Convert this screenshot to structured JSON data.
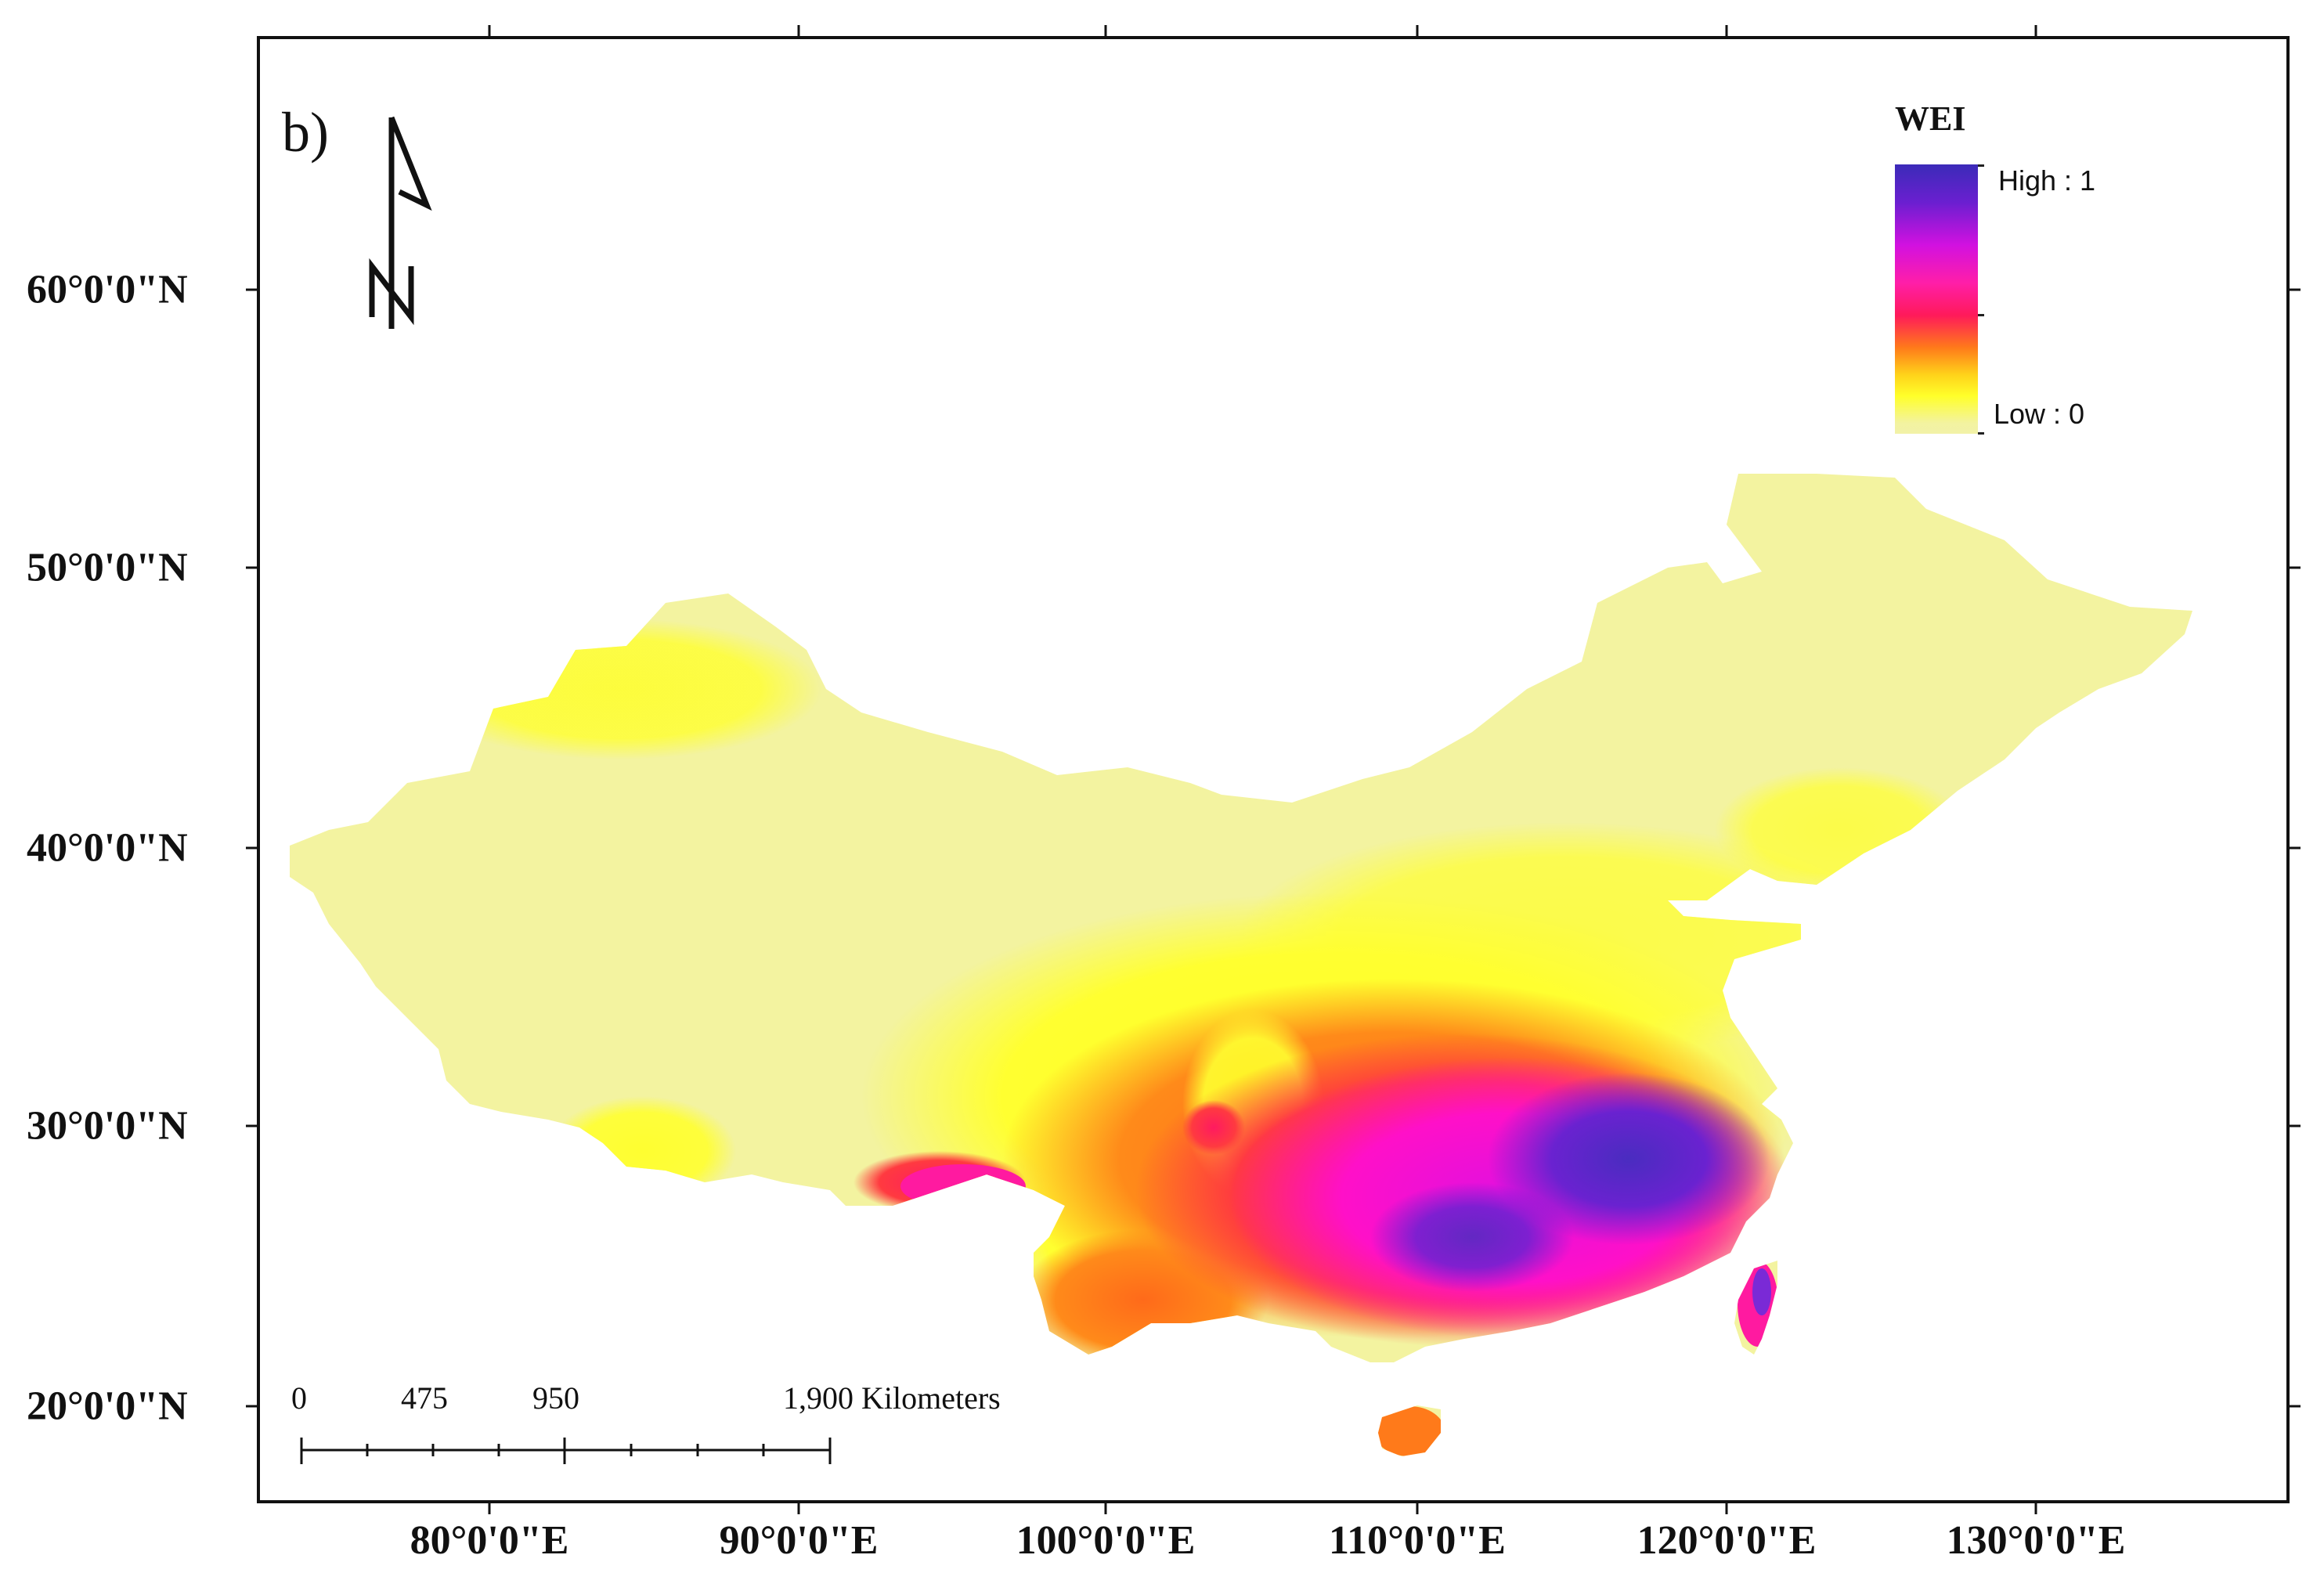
{
  "panel_label": "b)",
  "legend": {
    "title": "WEI",
    "high_label": "High : 1",
    "low_label": "Low : 0",
    "colors": [
      "#3b2bb8",
      "#d211e0",
      "#ff1a5a",
      "#ff7a1a",
      "#ffff2a",
      "#f2f2a8"
    ]
  },
  "axes": {
    "latitude_labels": [
      "60°0'0\"N",
      "50°0'0\"N",
      "40°0'0\"N",
      "30°0'0\"N",
      "20°0'0\"N"
    ],
    "longitude_labels": [
      "80°0'0\"E",
      "90°0'0\"E",
      "100°0'0\"E",
      "110°0'0\"E",
      "120°0'0\"E",
      "130°0'0\"E"
    ]
  },
  "scale_bar": {
    "labels": [
      "0",
      "475",
      "950",
      "1,900 Kilometers"
    ]
  },
  "north_arrow": {
    "icon": "north-arrow-icon",
    "letter": "N"
  }
}
